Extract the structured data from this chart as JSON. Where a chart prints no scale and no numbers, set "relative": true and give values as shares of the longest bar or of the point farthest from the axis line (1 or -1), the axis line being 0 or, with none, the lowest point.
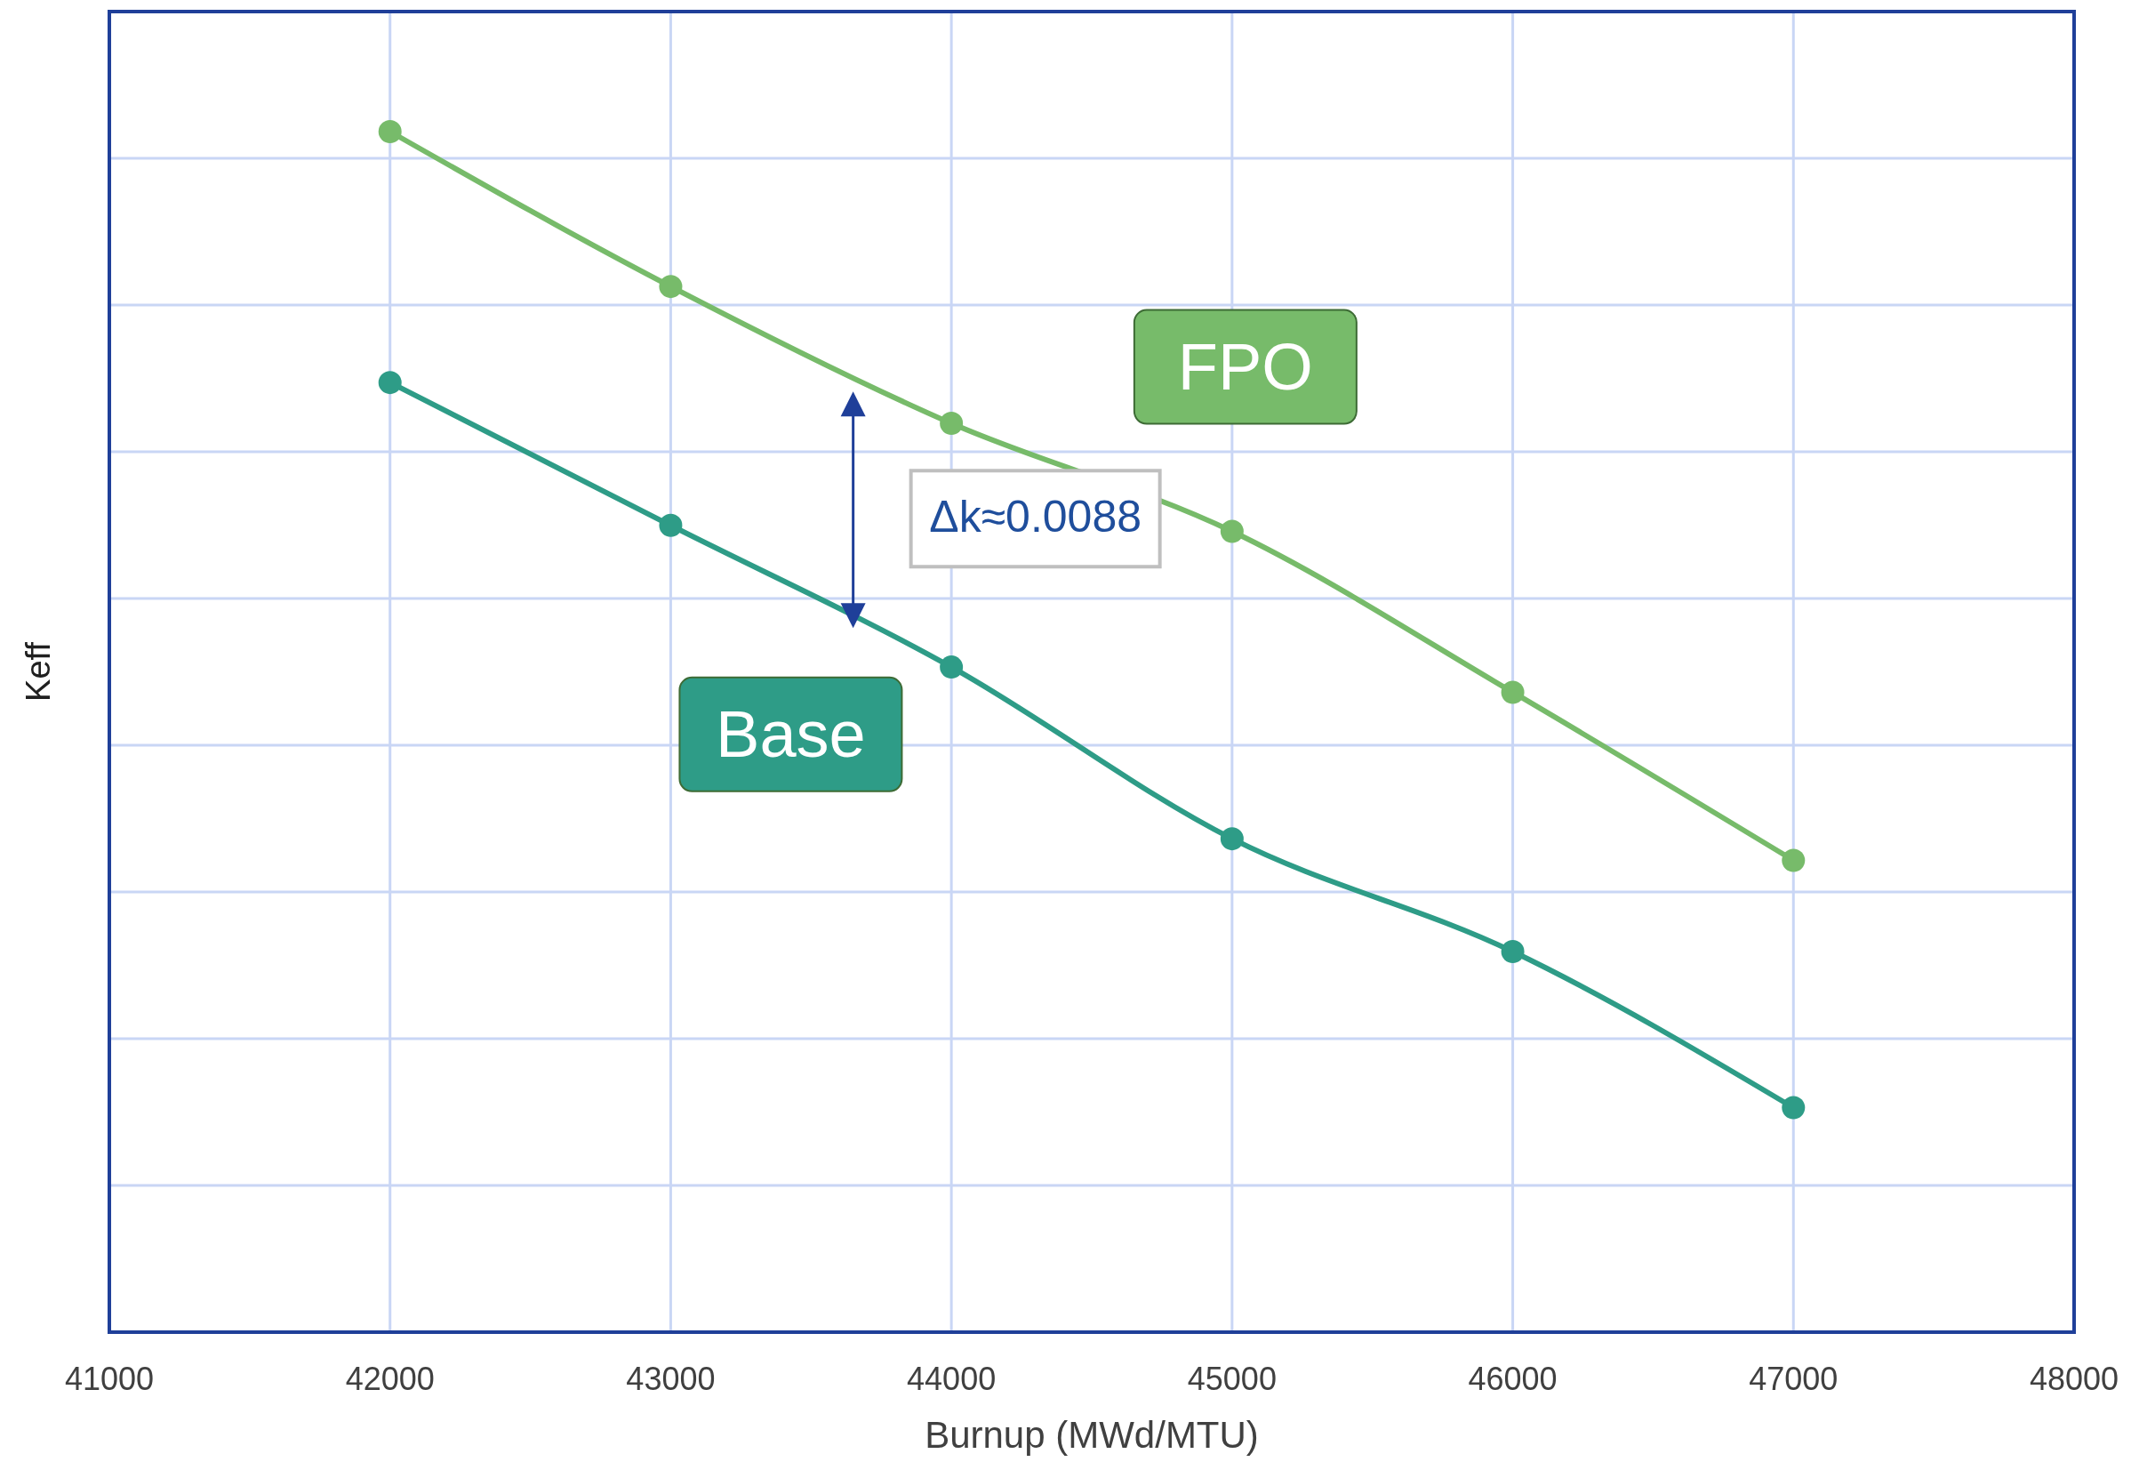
{
  "chart_data": {
    "type": "line",
    "relative": true,
    "xlabel": "Burnup (MWd/MTU)",
    "ylabel": "Keff",
    "x": [
      42000,
      43000,
      44000,
      45000,
      46000,
      47000
    ],
    "xlim": [
      41000,
      48000
    ],
    "xticks": [
      41000,
      42000,
      43000,
      44000,
      45000,
      46000,
      47000,
      48000
    ],
    "tick_labels": "x",
    "grid": true,
    "marker": "circle",
    "line_style": "solid",
    "series": [
      {
        "name": "FPO",
        "color": "#77bb6a",
        "values": [
          1,
          0.871,
          0.757,
          0.667,
          0.533,
          0.393
        ]
      },
      {
        "name": "Base",
        "color": "#2e9c87",
        "values": [
          0.791,
          0.672,
          0.554,
          0.411,
          0.317,
          0.187
        ]
      }
    ],
    "annotations": [
      "Δk≈0.0088"
    ]
  }
}
